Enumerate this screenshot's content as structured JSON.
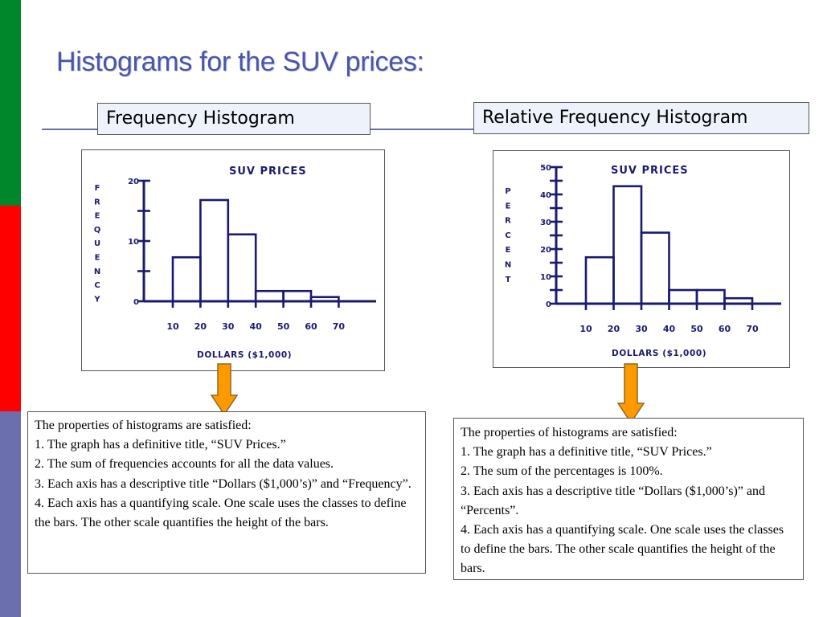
{
  "slide": {
    "title": "Histograms for the SUV prices:",
    "colors": {
      "title": "#4a55a8",
      "chart_ink": "#1a1a6e",
      "arrow_fill": "#ff9900",
      "header_bg": "#eef3fb"
    }
  },
  "left": {
    "header": "Frequency Histogram",
    "notes": [
      "The properties of histograms are satisfied:",
      "1.  The graph has a definitive title, “SUV Prices.”",
      "2.  The sum of frequencies accounts for all the data values.",
      "3.  Each axis has a descriptive title “Dollars ($1,000’s)” and “Frequency”.",
      "4.  Each axis has a quantifying scale.  One scale uses the classes to define the bars.  The other scale quantifies the height of the bars."
    ]
  },
  "right": {
    "header": "Relative Frequency Histogram",
    "notes": [
      "The properties of histograms are satisfied:",
      "1.  The graph has a definitive title, “SUV Prices.”",
      "2.  The sum of the percentages is 100%.",
      "3.  Each axis has a descriptive title “Dollars ($1,000’s)” and “Percents”.",
      "4.  Each axis has a quantifying scale.  One scale uses the classes to define the bars.  The other scale quantifies the height of the bars."
    ]
  },
  "chart_data": [
    {
      "type": "bar",
      "title": "SUV PRICES",
      "xlabel": "DOLLARS ($1,000)",
      "ylabel": "FREQUENCY",
      "x_ticks": [
        "10",
        "20",
        "30",
        "40",
        "50",
        "60",
        "70"
      ],
      "y_ticks": [
        "0",
        "10",
        "20"
      ],
      "ylim": [
        0,
        20
      ],
      "bins": [
        [
          10,
          20
        ],
        [
          20,
          30
        ],
        [
          30,
          40
        ],
        [
          40,
          50
        ],
        [
          50,
          60
        ],
        [
          60,
          70
        ]
      ],
      "values": [
        7.3,
        16.8,
        11.1,
        1.7,
        1.7,
        0.7
      ]
    },
    {
      "type": "bar",
      "title": "SUV PRICES",
      "xlabel": "DOLLARS ($1,000)",
      "ylabel": "PERCENT",
      "x_ticks": [
        "10",
        "20",
        "30",
        "40",
        "50",
        "60",
        "70"
      ],
      "y_ticks": [
        "0",
        "10",
        "20",
        "30",
        "40",
        "50"
      ],
      "ylim": [
        0,
        50
      ],
      "bins": [
        [
          10,
          20
        ],
        [
          20,
          30
        ],
        [
          30,
          40
        ],
        [
          40,
          50
        ],
        [
          50,
          60
        ],
        [
          60,
          70
        ]
      ],
      "values": [
        17,
        43,
        26,
        5,
        5,
        2
      ]
    }
  ]
}
